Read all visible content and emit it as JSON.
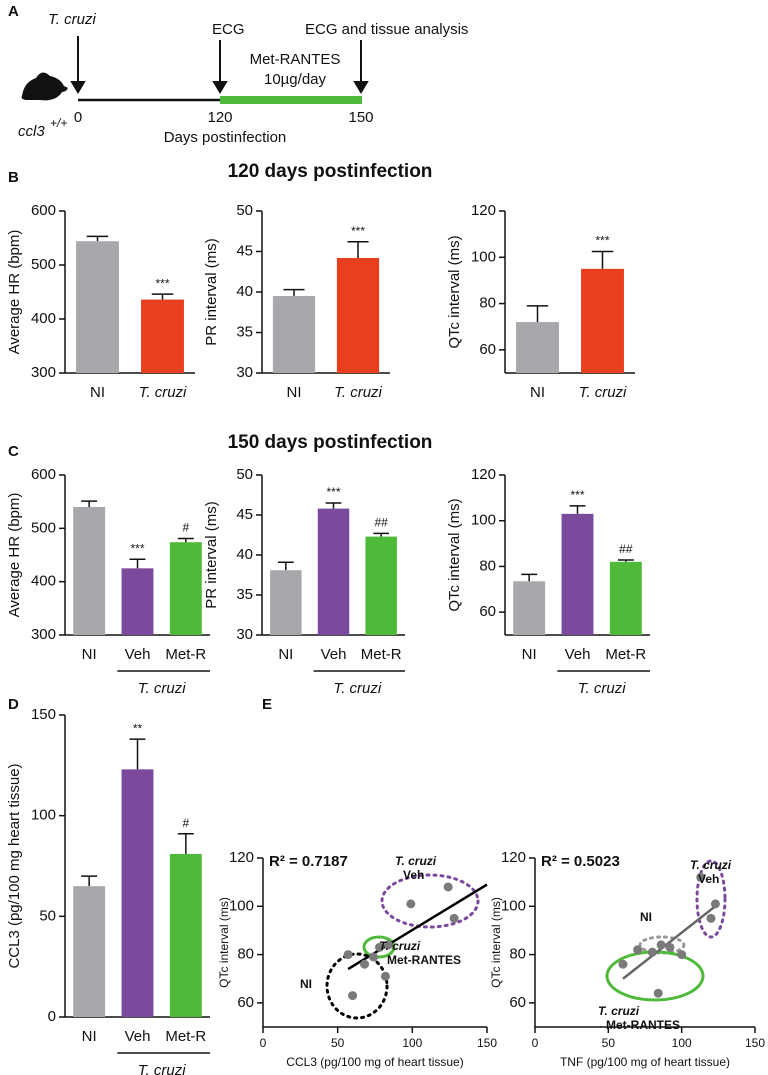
{
  "panel_labels": [
    "A",
    "B",
    "C",
    "D",
    "E"
  ],
  "section_titles": [
    "120 days postinfection",
    "150 days postinfection"
  ],
  "timeline": {
    "infection": "T. cruzi",
    "first_exam": "ECG",
    "final_exam": "ECG and tissue analysis",
    "treatment": "Met-RANTES",
    "dose": "10µg/day",
    "days": [
      "0",
      "120",
      "150"
    ],
    "axis_label": "Days postinfection",
    "strain": "ccl3",
    "genotype": "+/+"
  },
  "chart_data": [
    {
      "type": "bar",
      "y_label": "Average HR (bpm)",
      "categories": [
        "NI",
        "T. cruzi"
      ],
      "category_style": [
        "normal",
        "italic"
      ],
      "values": [
        544,
        436
      ],
      "errors": [
        9,
        10
      ],
      "sig_labels": [
        null,
        "***"
      ],
      "colors": [
        "#a7a8ab",
        "#e8401e"
      ],
      "ylim": [
        300,
        600
      ],
      "yticks": [
        300,
        400,
        500,
        600
      ]
    },
    {
      "type": "bar",
      "y_label": "PR interval (ms)",
      "categories": [
        "NI",
        "T. cruzi"
      ],
      "category_style": [
        "normal",
        "italic"
      ],
      "values": [
        39.5,
        44.2
      ],
      "errors": [
        0.8,
        2
      ],
      "sig_labels": [
        null,
        "***"
      ],
      "colors": [
        "#a7a8ab",
        "#e8401e"
      ],
      "ylim": [
        30,
        50
      ],
      "yticks": [
        30,
        35,
        40,
        45,
        50
      ]
    },
    {
      "type": "bar",
      "y_label": "QTc interval (ms)",
      "categories": [
        "NI",
        "T. cruzi"
      ],
      "category_style": [
        "normal",
        "italic"
      ],
      "values": [
        72,
        95
      ],
      "errors": [
        7,
        7.5
      ],
      "sig_labels": [
        null,
        "***"
      ],
      "colors": [
        "#a7a8ab",
        "#e8401e"
      ],
      "ylim": [
        50,
        120
      ],
      "yticks": [
        60,
        80,
        100,
        120
      ]
    },
    {
      "type": "bar",
      "y_label": "Average HR (bpm)",
      "categories": [
        "NI",
        "Veh",
        "Met-R"
      ],
      "category_style": [
        "normal",
        "normal",
        "normal"
      ],
      "group_label": "T. cruzi",
      "values": [
        540,
        425,
        474
      ],
      "errors": [
        11,
        17,
        7
      ],
      "sig_labels": [
        null,
        "***",
        "#"
      ],
      "colors": [
        "#a7a8ab",
        "#7b4a9c",
        "#4fba3a"
      ],
      "ylim": [
        300,
        600
      ],
      "yticks": [
        300,
        400,
        500,
        600
      ]
    },
    {
      "type": "bar",
      "y_label": "PR interval (ms)",
      "categories": [
        "NI",
        "Veh",
        "Met-R"
      ],
      "category_style": [
        "normal",
        "normal",
        "normal"
      ],
      "group_label": "T. cruzi",
      "values": [
        38.1,
        45.8,
        42.3
      ],
      "errors": [
        1,
        0.7,
        0.4
      ],
      "sig_labels": [
        null,
        "***",
        "##"
      ],
      "colors": [
        "#a7a8ab",
        "#7b4a9c",
        "#4fba3a"
      ],
      "ylim": [
        30,
        50
      ],
      "yticks": [
        30,
        35,
        40,
        45,
        50
      ]
    },
    {
      "type": "bar",
      "y_label": "QTc interval (ms)",
      "categories": [
        "NI",
        "Veh",
        "Met-R"
      ],
      "category_style": [
        "normal",
        "normal",
        "normal"
      ],
      "group_label": "T. cruzi",
      "values": [
        73.5,
        103,
        82
      ],
      "errors": [
        3,
        3.5,
        0.8
      ],
      "sig_labels": [
        null,
        "***",
        "##"
      ],
      "colors": [
        "#a7a8ab",
        "#7b4a9c",
        "#4fba3a"
      ],
      "ylim": [
        50,
        120
      ],
      "yticks": [
        60,
        80,
        100,
        120
      ]
    },
    {
      "type": "bar",
      "y_label": "CCL3 (pg/100 mg heart tissue)",
      "categories": [
        "NI",
        "Veh",
        "Met-R"
      ],
      "category_style": [
        "normal",
        "normal",
        "normal"
      ],
      "group_label": "T. cruzi",
      "values": [
        65,
        123,
        81
      ],
      "errors": [
        5,
        15,
        10
      ],
      "sig_labels": [
        null,
        "**",
        "#"
      ],
      "colors": [
        "#a7a8ab",
        "#7b4a9c",
        "#4fba3a"
      ],
      "ylim": [
        0,
        150
      ],
      "yticks": [
        0,
        50,
        100,
        150
      ]
    },
    {
      "type": "scatter",
      "annotation": "R² = 0.7187",
      "x_label": "CCL3 (pg/100 mg of heart tissue)",
      "y_label": "QTc interval (ms)",
      "x": [
        57,
        60,
        68,
        74,
        78,
        84,
        82,
        99,
        124,
        128
      ],
      "values": [
        80,
        63,
        76,
        79,
        83,
        84,
        71,
        101,
        108,
        95
      ],
      "color": "#7a7a7a",
      "fit": {
        "x": [
          57,
          150
        ],
        "y": [
          74,
          109
        ],
        "color": "#000000"
      },
      "xlim": [
        0,
        150
      ],
      "xticks": [
        0,
        50,
        100,
        150
      ],
      "ylim": [
        50,
        120
      ],
      "yticks": [
        60,
        80,
        100,
        120
      ],
      "group_labels": [
        {
          "lines": [
            "T. cruzi",
            "Veh"
          ],
          "color": "#7b4a9c"
        },
        {
          "lines": [
            "T. cruzi",
            "Met-RANTES"
          ],
          "color": "#4fba3a"
        },
        {
          "lines": [
            "NI"
          ],
          "color": "#000000"
        }
      ]
    },
    {
      "type": "scatter",
      "annotation": "R² = 0.5023",
      "x_label": "TNF (pg/100 mg of heart tissue)",
      "y_label": "QTc interval (ms)",
      "x": [
        60,
        70,
        84,
        80,
        86,
        92,
        100,
        113,
        120,
        123
      ],
      "values": [
        76,
        82,
        64,
        81,
        84,
        83,
        80,
        112,
        95,
        101
      ],
      "color": "#7a7a7a",
      "fit": {
        "x": [
          60,
          125
        ],
        "y": [
          70,
          101
        ],
        "color": "#666666"
      },
      "xlim": [
        0,
        150
      ],
      "xticks": [
        0,
        50,
        100,
        150
      ],
      "ylim": [
        50,
        120
      ],
      "yticks": [
        60,
        80,
        100,
        120
      ],
      "group_labels": [
        {
          "lines": [
            "T. cruzi",
            "Veh"
          ],
          "color": "#7b4a9c"
        },
        {
          "lines": [
            "NI"
          ],
          "color": "#000000"
        },
        {
          "lines": [
            "T. cruzi",
            "Met-RANTES"
          ],
          "color": "#4fba3a"
        }
      ]
    }
  ]
}
